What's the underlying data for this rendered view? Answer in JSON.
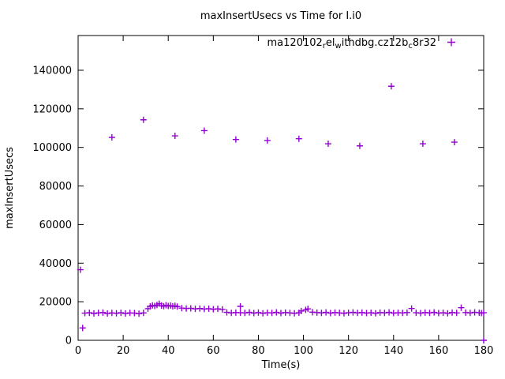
{
  "chart_data": {
    "type": "scatter",
    "title": "maxInsertUsecs vs Time for I.i0",
    "xlabel": "Time(s)",
    "ylabel": "maxInsertUsecs",
    "xlim": [
      0,
      180
    ],
    "ylim": [
      0,
      158000
    ],
    "xticks": [
      0,
      20,
      40,
      60,
      80,
      100,
      120,
      140,
      160,
      180
    ],
    "yticks": [
      0,
      20000,
      40000,
      60000,
      80000,
      100000,
      120000,
      140000
    ],
    "grid": false,
    "legend_position": "top-right-inside",
    "marker": "plus",
    "marker_color": "#9400D3",
    "axis_color": "#000000",
    "text_color": "#000000",
    "background_color": "#ffffff",
    "series": [
      {
        "name": "ma120102_rel_withdbg.cz12b_c8r32",
        "name_segments": [
          {
            "t": "ma120102"
          },
          {
            "t": "r",
            "sub": true
          },
          {
            "t": "el"
          },
          {
            "t": "w",
            "sub": true
          },
          {
            "t": "ithdbg.cz12b"
          },
          {
            "t": "c",
            "sub": true
          },
          {
            "t": "8r32"
          }
        ],
        "points": [
          [
            1,
            36600
          ],
          [
            2,
            6400
          ],
          [
            3,
            14100
          ],
          [
            5,
            14300
          ],
          [
            7,
            13900
          ],
          [
            9,
            14200
          ],
          [
            11,
            14400
          ],
          [
            13,
            13900
          ],
          [
            15,
            14200
          ],
          [
            17,
            14000
          ],
          [
            19,
            14300
          ],
          [
            21,
            13900
          ],
          [
            23,
            14200
          ],
          [
            25,
            14100
          ],
          [
            27,
            13800
          ],
          [
            29,
            14200
          ],
          [
            15,
            105200
          ],
          [
            29,
            114300
          ],
          [
            31,
            16400
          ],
          [
            32,
            17600
          ],
          [
            33,
            18100
          ],
          [
            34,
            17800
          ],
          [
            35,
            18300
          ],
          [
            36,
            19000
          ],
          [
            37,
            18000
          ],
          [
            38,
            17700
          ],
          [
            39,
            18200
          ],
          [
            40,
            17800
          ],
          [
            41,
            18000
          ],
          [
            42,
            17600
          ],
          [
            43,
            17900
          ],
          [
            44,
            17500
          ],
          [
            43,
            106000
          ],
          [
            46,
            16700
          ],
          [
            48,
            16500
          ],
          [
            50,
            16600
          ],
          [
            52,
            16300
          ],
          [
            54,
            16500
          ],
          [
            56,
            16200
          ],
          [
            58,
            16400
          ],
          [
            60,
            16100
          ],
          [
            62,
            16300
          ],
          [
            64,
            16000
          ],
          [
            56,
            108700
          ],
          [
            66,
            14500
          ],
          [
            68,
            14200
          ],
          [
            70,
            14400
          ],
          [
            70,
            104100
          ],
          [
            72,
            17600
          ],
          [
            72,
            14300
          ],
          [
            74,
            14200
          ],
          [
            76,
            14500
          ],
          [
            78,
            14100
          ],
          [
            80,
            14400
          ],
          [
            82,
            14000
          ],
          [
            84,
            14300
          ],
          [
            86,
            14200
          ],
          [
            88,
            14500
          ],
          [
            90,
            14100
          ],
          [
            92,
            14400
          ],
          [
            94,
            14200
          ],
          [
            96,
            14000
          ],
          [
            98,
            14300
          ],
          [
            84,
            103600
          ],
          [
            98,
            104500
          ],
          [
            99,
            15200
          ],
          [
            101,
            15800
          ],
          [
            102,
            16300
          ],
          [
            104,
            14600
          ],
          [
            106,
            14400
          ],
          [
            108,
            14200
          ],
          [
            110,
            14500
          ],
          [
            112,
            14100
          ],
          [
            114,
            14400
          ],
          [
            116,
            14200
          ],
          [
            118,
            14000
          ],
          [
            120,
            14300
          ],
          [
            122,
            14500
          ],
          [
            124,
            14200
          ],
          [
            126,
            14400
          ],
          [
            128,
            14100
          ],
          [
            130,
            14300
          ],
          [
            132,
            14000
          ],
          [
            134,
            14400
          ],
          [
            136,
            14200
          ],
          [
            138,
            14500
          ],
          [
            140,
            14100
          ],
          [
            142,
            14300
          ],
          [
            144,
            14200
          ],
          [
            146,
            14400
          ],
          [
            111,
            101900
          ],
          [
            125,
            100800
          ],
          [
            139,
            131700
          ],
          [
            148,
            16500
          ],
          [
            150,
            14300
          ],
          [
            152,
            14100
          ],
          [
            154,
            14400
          ],
          [
            156,
            14200
          ],
          [
            158,
            14500
          ],
          [
            160,
            14100
          ],
          [
            162,
            14300
          ],
          [
            164,
            14000
          ],
          [
            166,
            14400
          ],
          [
            168,
            14200
          ],
          [
            153,
            101900
          ],
          [
            167,
            102700
          ],
          [
            170,
            16900
          ],
          [
            172,
            14400
          ],
          [
            174,
            14200
          ],
          [
            176,
            14500
          ],
          [
            178,
            14300
          ],
          [
            179,
            14100
          ],
          [
            180,
            14300
          ],
          [
            180,
            0
          ]
        ]
      }
    ]
  }
}
